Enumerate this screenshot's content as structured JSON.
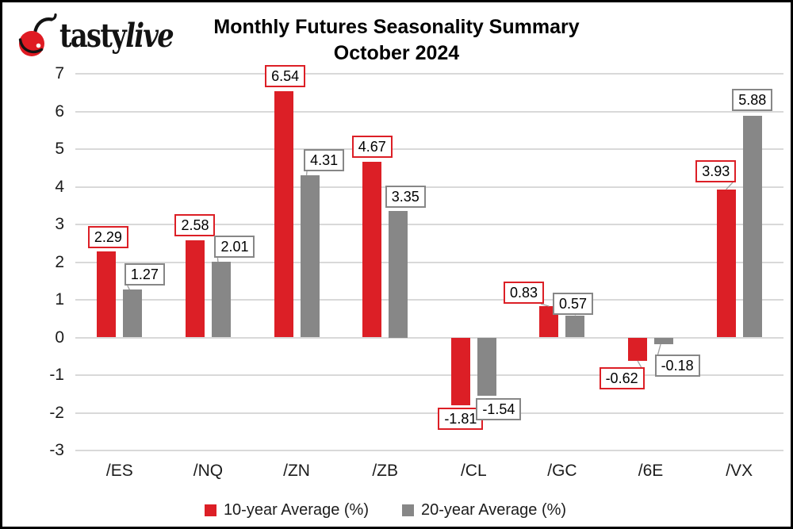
{
  "brand": {
    "logo_text_regular": "tasty",
    "logo_text_italic": "live",
    "cherry_color": "#df1b23"
  },
  "title": {
    "line1": "Monthly Futures Seasonality Summary",
    "line2": "October 2024"
  },
  "chart_data": {
    "type": "bar",
    "title": "Monthly Futures Seasonality Summary",
    "subtitle": "October 2024",
    "categories": [
      "/ES",
      "/NQ",
      "/ZN",
      "/ZB",
      "/CL",
      "/GC",
      "/6E",
      "/VX"
    ],
    "series": [
      {
        "name": "10-year Average (%)",
        "color": "#dc1f26",
        "values": [
          2.29,
          2.58,
          6.54,
          4.67,
          -1.81,
          0.83,
          -0.62,
          3.93
        ]
      },
      {
        "name": "20-year Average (%)",
        "color": "#878787",
        "values": [
          1.27,
          2.01,
          4.31,
          3.35,
          -1.54,
          0.57,
          -0.18,
          5.88
        ]
      }
    ],
    "ylim": [
      -3,
      7
    ],
    "ytick_step": 1,
    "grid": true,
    "value_labels": true,
    "legend_position": "bottom",
    "colors": {
      "grid": "#d9d9d9",
      "leader_line": "#9e9e9e",
      "text": "#1c1c1c"
    },
    "layout": {
      "label_offsets": [
        [
          [
            2,
            1,
            0
          ],
          [
            0,
            0,
            0
          ],
          [
            2,
            0,
            0
          ],
          [
            0,
            0,
            0
          ],
          [
            0,
            -2,
            0
          ],
          [
            -32,
            2,
            1
          ],
          [
            -20,
            3,
            1
          ],
          [
            -13,
            -4,
            1
          ]
        ],
        [
          [
            15,
            0,
            1
          ],
          [
            17,
            0,
            1
          ],
          [
            18,
            0,
            1
          ],
          [
            9,
            1,
            0
          ],
          [
            15,
            -2,
            0
          ],
          [
            -3,
            4,
            1
          ],
          [
            17,
            8,
            1
          ],
          [
            0,
            -1,
            0
          ]
        ]
      ]
    }
  }
}
